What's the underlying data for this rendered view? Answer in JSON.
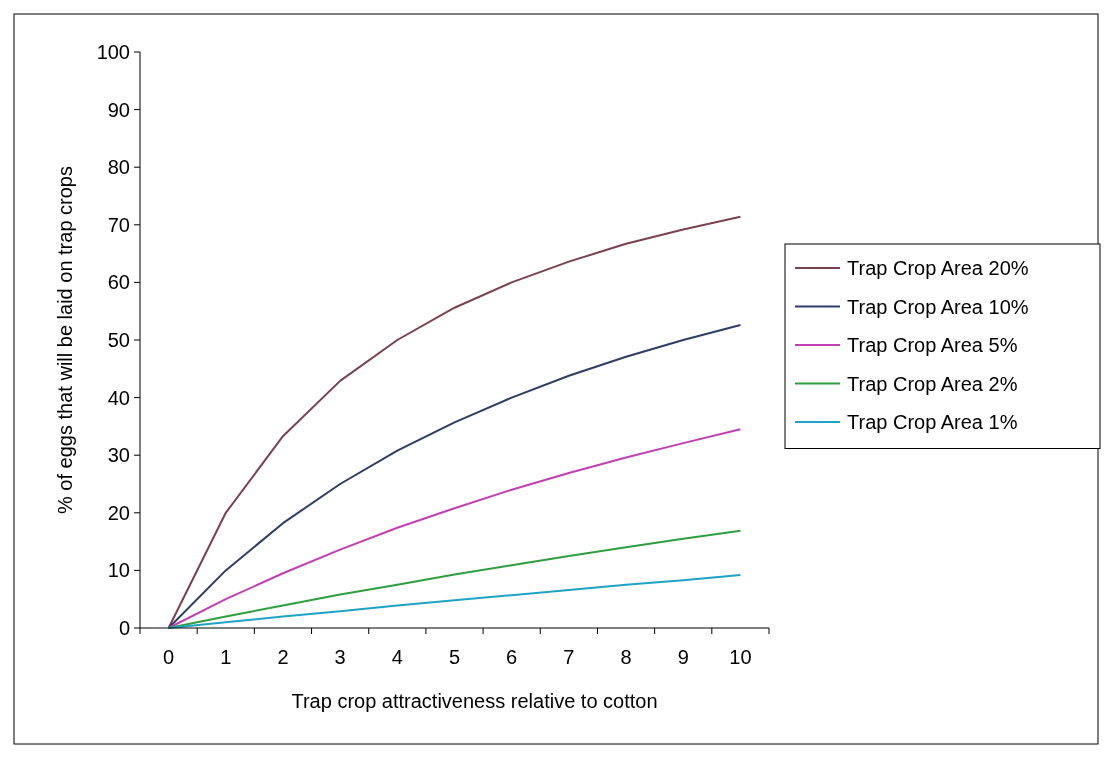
{
  "chart_data": {
    "type": "line",
    "xlabel": "Trap crop attractiveness relative to cotton",
    "ylabel": "% of eggs that will be laid on trap crops",
    "categories": [
      "0",
      "1",
      "2",
      "3",
      "4",
      "5",
      "6",
      "7",
      "8",
      "9",
      "10"
    ],
    "series": [
      {
        "name": "Trap Crop Area 20%",
        "color": "#7b4150",
        "values": [
          0,
          20,
          33.3,
          42.9,
          50,
          55.6,
          60,
          63.6,
          66.7,
          69.2,
          71.4
        ]
      },
      {
        "name": "Trap Crop Area 10%",
        "color": "#2c3e66",
        "values": [
          0,
          10,
          18.2,
          25,
          30.8,
          35.7,
          40,
          43.8,
          47.1,
          50,
          52.6
        ]
      },
      {
        "name": "Trap Crop Area 5%",
        "color": "#c23fb4",
        "values": [
          0,
          5,
          9.5,
          13.6,
          17.4,
          20.8,
          24,
          26.9,
          29.6,
          32.1,
          34.5
        ]
      },
      {
        "name": "Trap Crop Area 2%",
        "color": "#2e9e3e",
        "values": [
          0,
          2,
          3.9,
          5.8,
          7.5,
          9.3,
          10.9,
          12.5,
          14,
          15.5,
          16.9
        ]
      },
      {
        "name": "Trap Crop Area 1%",
        "color": "#1fa3c4",
        "values": [
          0,
          1,
          2,
          2.9,
          3.9,
          4.8,
          5.7,
          6.6,
          7.5,
          8.3,
          9.2
        ]
      }
    ],
    "ylim": [
      0,
      100
    ],
    "yticks": [
      0,
      10,
      20,
      30,
      40,
      50,
      60,
      70,
      80,
      90,
      100
    ],
    "legend": "right",
    "grid": false,
    "marker": "none",
    "line_style": "solid"
  }
}
